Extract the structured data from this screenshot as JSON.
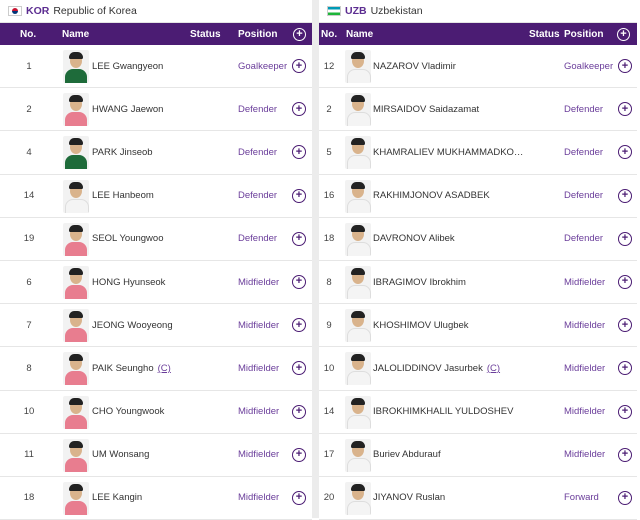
{
  "colors": {
    "header_bg": "#4b1c73",
    "accent": "#6a3d9a",
    "kit_home_korea": "#1e6b3a",
    "kit_pink_korea": "#e87d8f",
    "kit_uzb": "#f4f4f4"
  },
  "columns": {
    "no": "No.",
    "name": "Name",
    "status": "Status",
    "position": "Position"
  },
  "teams": [
    {
      "code": "KOR",
      "name": "Republic of Korea",
      "flag_icon": "korea-flag-icon",
      "players": [
        {
          "no": "1",
          "name": "LEE Gwangyeon",
          "position": "Goalkeeper",
          "kit": "green",
          "captain": ""
        },
        {
          "no": "2",
          "name": "HWANG Jaewon",
          "position": "Defender",
          "kit": "pink",
          "captain": ""
        },
        {
          "no": "4",
          "name": "PARK Jinseob",
          "position": "Defender",
          "kit": "green",
          "captain": ""
        },
        {
          "no": "14",
          "name": "LEE Hanbeom",
          "position": "Defender",
          "kit": "white",
          "captain": ""
        },
        {
          "no": "19",
          "name": "SEOL Youngwoo",
          "position": "Defender",
          "kit": "pink",
          "captain": ""
        },
        {
          "no": "6",
          "name": "HONG Hyunseok",
          "position": "Midfielder",
          "kit": "pink",
          "captain": ""
        },
        {
          "no": "7",
          "name": "JEONG Wooyeong",
          "position": "Midfielder",
          "kit": "pink",
          "captain": ""
        },
        {
          "no": "8",
          "name": "PAIK Seungho",
          "position": "Midfielder",
          "kit": "pink",
          "captain": "(C)"
        },
        {
          "no": "10",
          "name": "CHO Youngwook",
          "position": "Midfielder",
          "kit": "pink",
          "captain": ""
        },
        {
          "no": "11",
          "name": "UM Wonsang",
          "position": "Midfielder",
          "kit": "pink",
          "captain": ""
        },
        {
          "no": "18",
          "name": "LEE Kangin",
          "position": "Midfielder",
          "kit": "pink",
          "captain": ""
        }
      ]
    },
    {
      "code": "UZB",
      "name": "Uzbekistan",
      "flag_icon": "uzbekistan-flag-icon",
      "players": [
        {
          "no": "12",
          "name": "NAZAROV Vladimir",
          "position": "Goalkeeper",
          "kit": "white",
          "captain": ""
        },
        {
          "no": "2",
          "name": "MIRSAIDOV Saidazamat",
          "position": "Defender",
          "kit": "white",
          "captain": ""
        },
        {
          "no": "5",
          "name": "KHAMRALIEV MUKHAMMADKO…",
          "position": "Defender",
          "kit": "white",
          "captain": ""
        },
        {
          "no": "16",
          "name": "RAKHIMJONOV ASADBEK",
          "position": "Defender",
          "kit": "white",
          "captain": ""
        },
        {
          "no": "18",
          "name": "DAVRONOV Alibek",
          "position": "Defender",
          "kit": "white",
          "captain": ""
        },
        {
          "no": "8",
          "name": "IBRAGIMOV Ibrokhim",
          "position": "Midfielder",
          "kit": "white",
          "captain": ""
        },
        {
          "no": "9",
          "name": "KHOSHIMOV Ulugbek",
          "position": "Midfielder",
          "kit": "white",
          "captain": ""
        },
        {
          "no": "10",
          "name": "JALOLIDDINOV Jasurbek",
          "position": "Midfielder",
          "kit": "white",
          "captain": "(C)"
        },
        {
          "no": "14",
          "name": "IBROKHIMKHALIL YULDOSHEV",
          "position": "Midfielder",
          "kit": "white",
          "captain": ""
        },
        {
          "no": "17",
          "name": "Buriev Abdurauf",
          "position": "Midfielder",
          "kit": "white",
          "captain": ""
        },
        {
          "no": "20",
          "name": "JIYANOV Ruslan",
          "position": "Forward",
          "kit": "white",
          "captain": ""
        }
      ]
    }
  ]
}
